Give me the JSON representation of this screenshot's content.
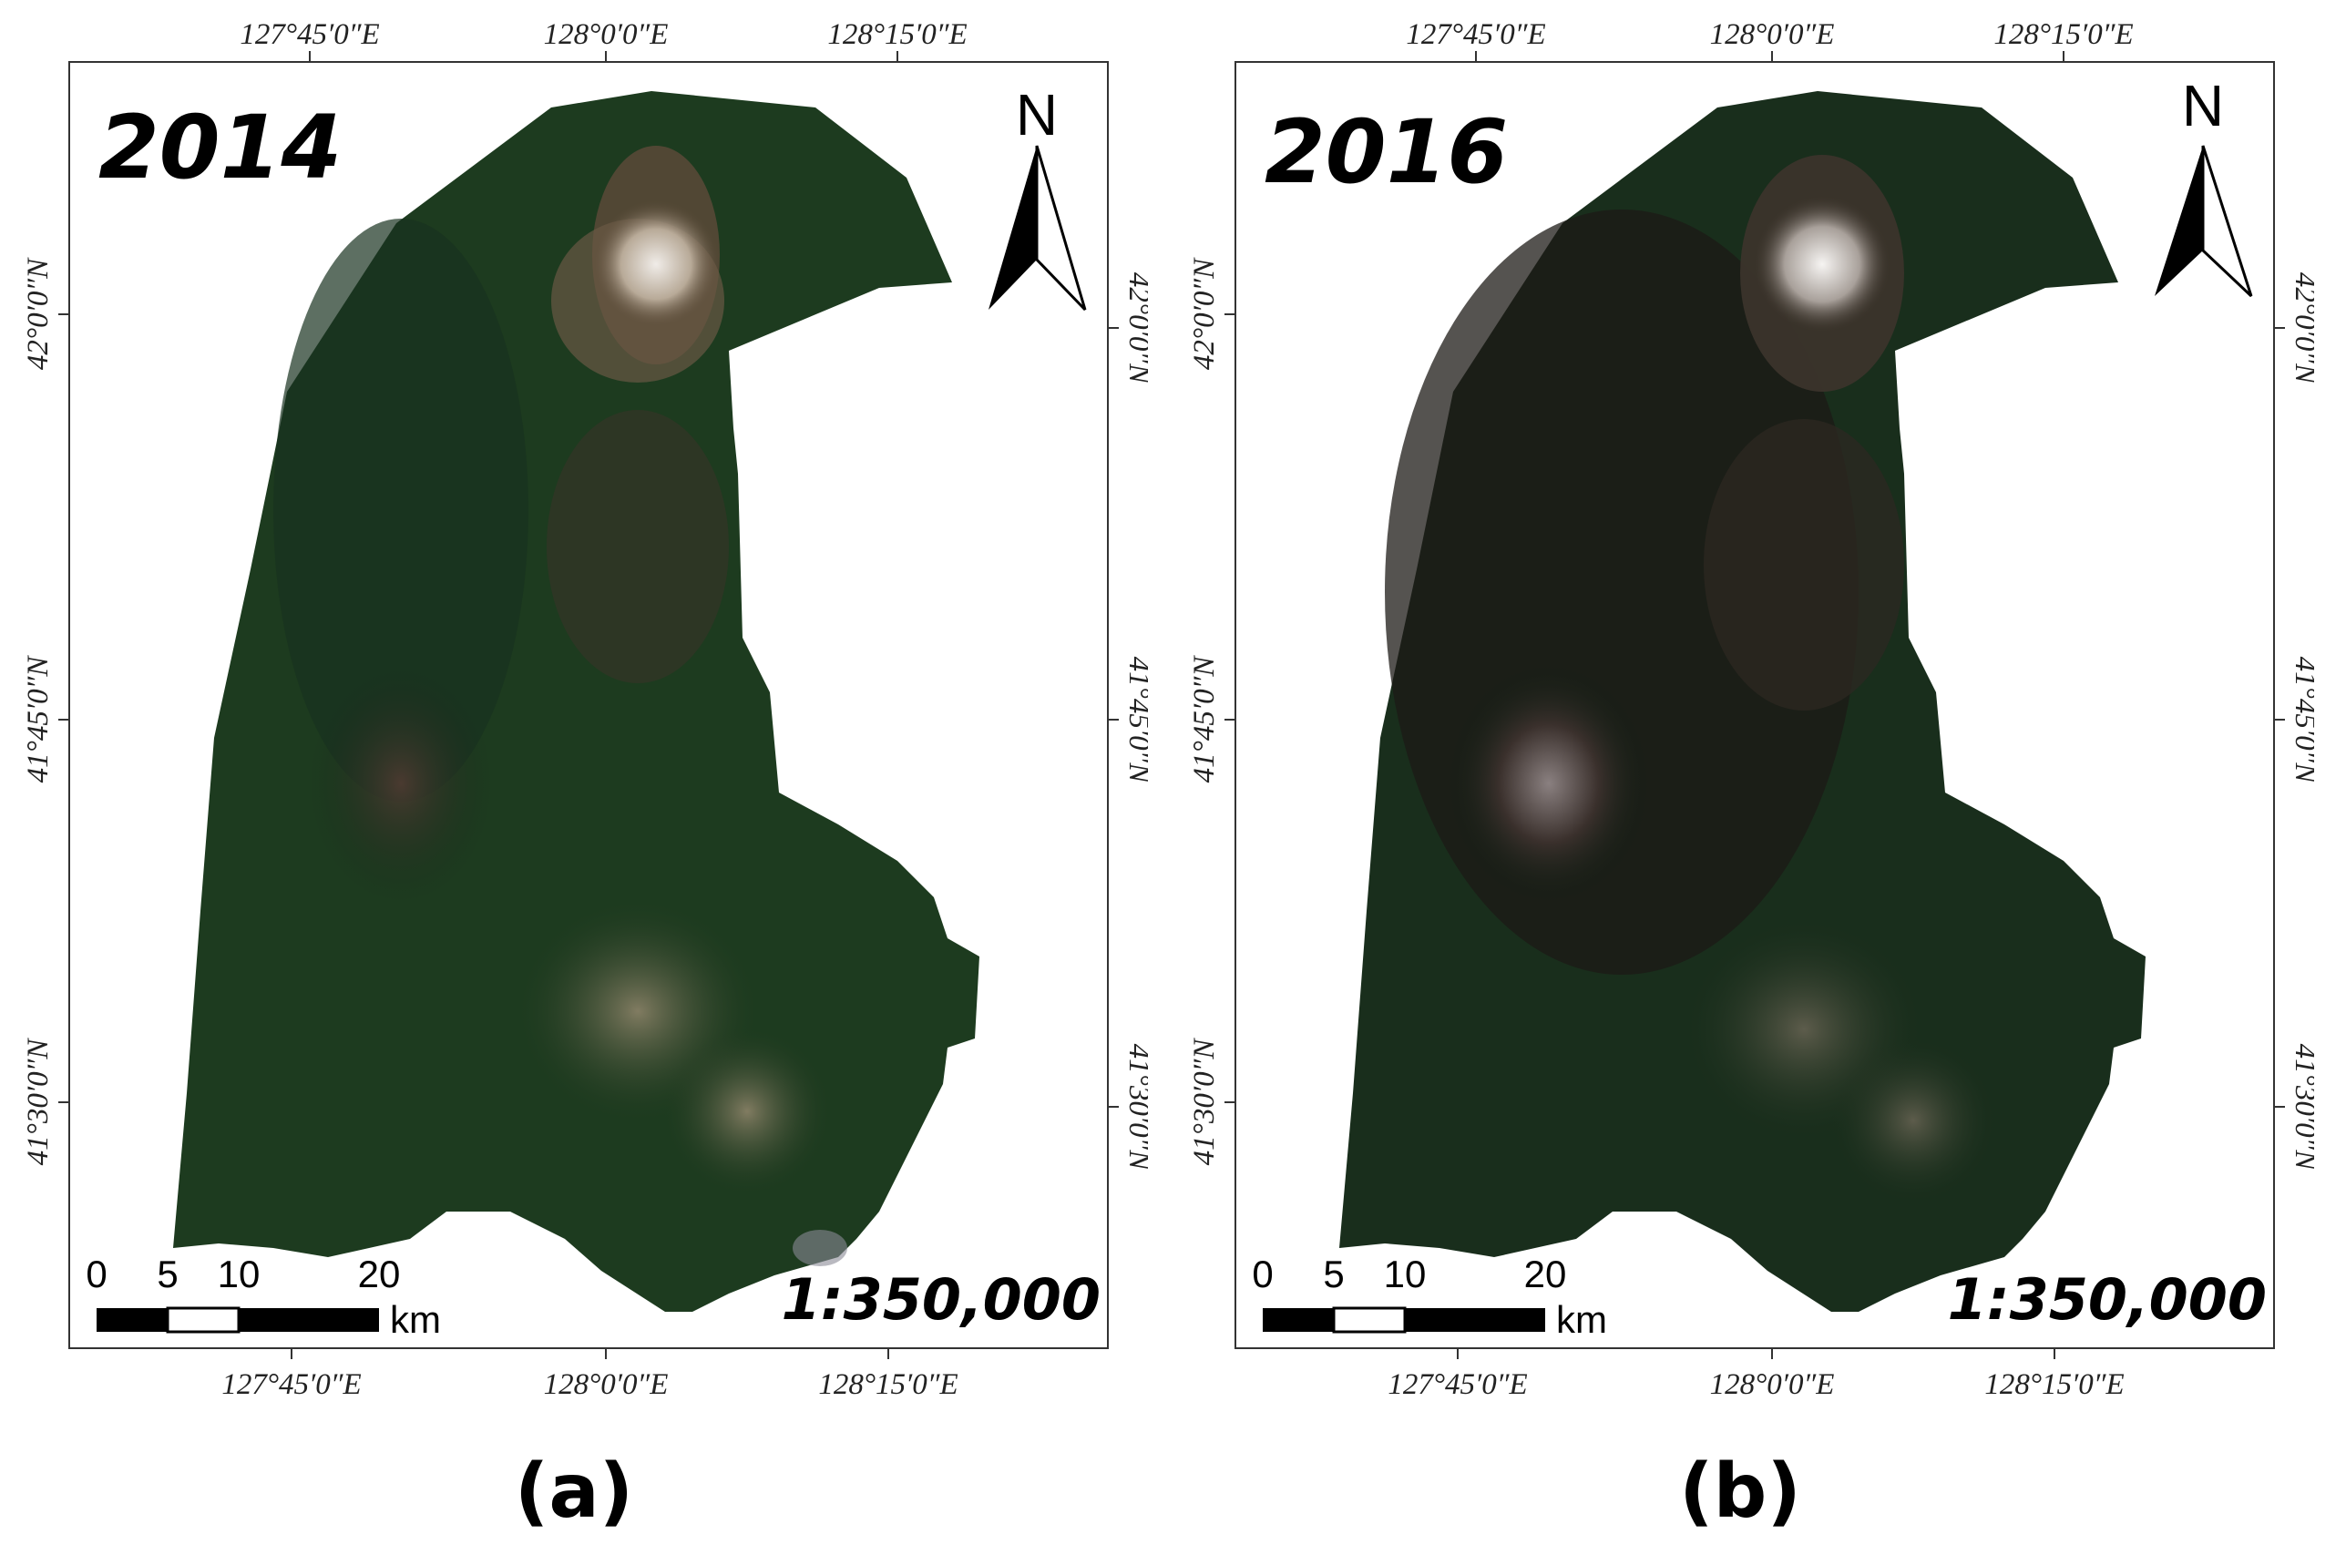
{
  "panels": [
    {
      "id": "a",
      "year": "2014",
      "scale": "1:350,000",
      "caption": "(a)",
      "north_label": "N",
      "lon_ticks": [
        "127°45′0″E",
        "128°0′0″E",
        "128°15′0″E"
      ],
      "lat_ticks": [
        "42°0′0″N",
        "41°45′0″N",
        "41°30′0″N"
      ],
      "scale_bar": {
        "labels": [
          "0",
          "5",
          "10",
          "20"
        ],
        "unit": "km"
      },
      "colors": {
        "forest": "#1d3b1f",
        "dark_forest": "#15291a",
        "brown": "#5a4a38",
        "snow": "#e8e4e0"
      }
    },
    {
      "id": "b",
      "year": "2016",
      "scale": "1:350,000",
      "caption": "(b)",
      "north_label": "N",
      "lon_ticks": [
        "127°45′0″E",
        "128°0′0″E",
        "128°15′0″E"
      ],
      "lat_ticks": [
        "42°0′0″N",
        "41°45′0″N",
        "41°30′0″N"
      ],
      "scale_bar": {
        "labels": [
          "0",
          "5",
          "10",
          "20"
        ],
        "unit": "km"
      },
      "colors": {
        "forest": "#192e1c",
        "dark_forest": "#111e14",
        "brown": "#3d342c",
        "snow": "#f2f0ee"
      }
    }
  ]
}
